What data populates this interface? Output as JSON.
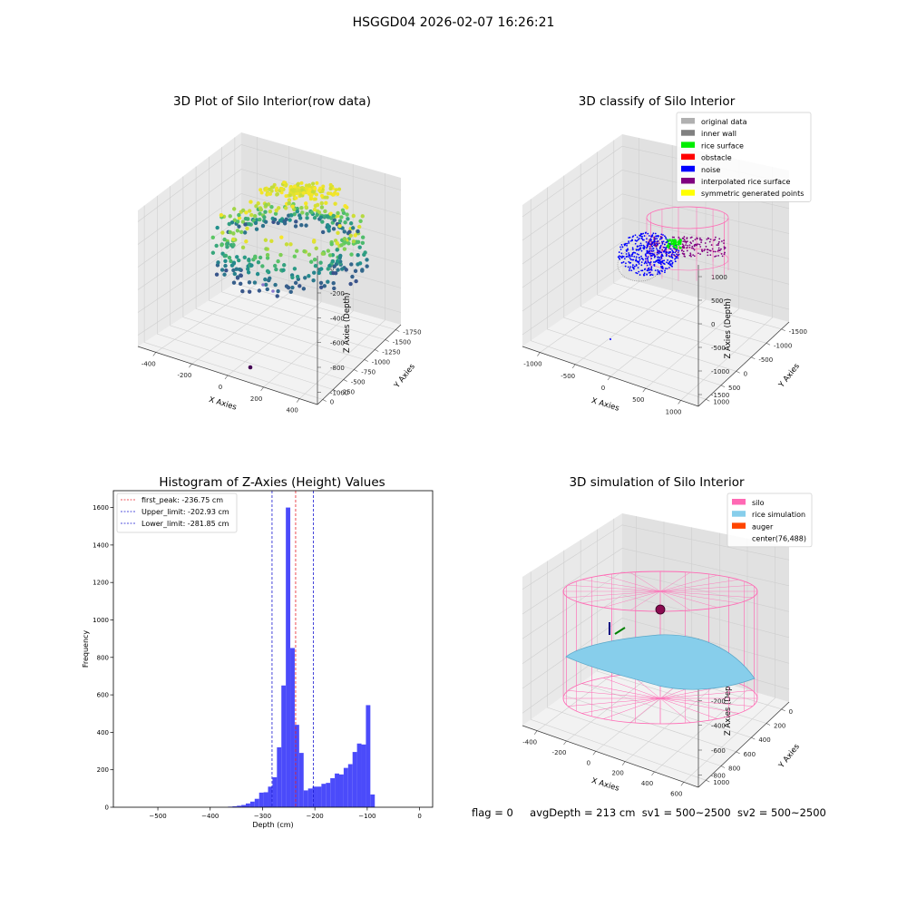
{
  "suptitle": "HSGGD04 2026-02-07 16:26:21",
  "footer": {
    "flag": "flag = 0",
    "avg_depth": "avgDepth = 213 cm",
    "sv1": "sv1 = 500~2500",
    "sv2": "sv2 = 500~2500"
  },
  "colors": {
    "histogram_bar": "#4b4bfa",
    "peak_line": "#e8212b",
    "limit_line": "#1a1ad1",
    "silo_pink": "#ff69b4",
    "rice_sim": "#87ceeb",
    "noise_blue": "#0000ff",
    "rice_surface_green": "#00ee00",
    "interp_purple": "#800080"
  },
  "chart_data": [
    {
      "type": "scatter",
      "subtype": "3d",
      "title": "3D Plot of Silo Interior(row data)",
      "xlabel": "X Axies",
      "ylabel": "Y Axies",
      "zlabel": "Z Axies (Depth)",
      "x_ticks": [
        "-400",
        "-200",
        "0",
        "200",
        "400"
      ],
      "y_ticks": [
        "0",
        "-250",
        "-500",
        "-750",
        "-1000",
        "-1250",
        "-1500",
        "-1750"
      ],
      "z_ticks": [
        "0",
        "-200",
        "-400",
        "-600",
        "-800",
        "-1000"
      ],
      "colormap": "viridis"
    },
    {
      "type": "scatter",
      "subtype": "3d",
      "title": "3D classify of Silo Interior",
      "xlabel": "X Axies",
      "ylabel": "Y Axies",
      "zlabel": "Z Axies (Depth)",
      "x_ticks": [
        "-1000",
        "-500",
        "0",
        "500",
        "1000"
      ],
      "y_ticks": [
        "1000",
        "500",
        "0",
        "-500",
        "-1000",
        "-1500"
      ],
      "z_ticks": [
        "1000",
        "500",
        "0",
        "-500",
        "-1000",
        "-1500"
      ],
      "legend_position": "top-right",
      "legend": [
        {
          "label": "original data",
          "color": "#b0b0b0"
        },
        {
          "label": "inner wall",
          "color": "#808080"
        },
        {
          "label": "rice surface",
          "color": "#00ee00"
        },
        {
          "label": "obstacle",
          "color": "#ff0000"
        },
        {
          "label": "noise",
          "color": "#0000ff"
        },
        {
          "label": "interpolated rice surface",
          "color": "#800080"
        },
        {
          "label": "symmetric generated points",
          "color": "#ffff00"
        }
      ]
    },
    {
      "type": "bar",
      "subtype": "histogram",
      "title": "Histogram of Z-Axies (Height) Values",
      "xlabel": "Depth (cm)",
      "ylabel": "Frequency",
      "xlim": [
        -585,
        25
      ],
      "ylim": [
        0,
        1690
      ],
      "x_ticks": [
        -500,
        -400,
        -300,
        -200,
        -100,
        0
      ],
      "y_ticks": [
        0,
        200,
        400,
        600,
        800,
        1000,
        1200,
        1400,
        1600
      ],
      "bin_width": 8.5,
      "bins_start": [
        -366,
        -357.5,
        -349,
        -340.5,
        -332,
        -323.5,
        -315,
        -306.5,
        -298,
        -289.5,
        -281,
        -272.5,
        -264,
        -255.5,
        -247,
        -238.5,
        -230,
        -221.5,
        -213,
        -204.5,
        -196,
        -187.5,
        -179,
        -170.5,
        -162,
        -153.5,
        -145,
        -136.5,
        -128,
        -119.5,
        -111,
        -102.5,
        -94,
        -85.5,
        -77,
        -68.5,
        -60,
        -51.5,
        -43,
        -34.5,
        -26,
        -17.5,
        -9,
        -0.5
      ],
      "values": [
        3,
        5,
        8,
        12,
        20,
        30,
        45,
        78,
        80,
        110,
        160,
        320,
        650,
        1600,
        850,
        440,
        290,
        90,
        100,
        110,
        110,
        125,
        130,
        155,
        180,
        175,
        210,
        230,
        295,
        340,
        335,
        545,
        68,
        0,
        0,
        0,
        0,
        0,
        0,
        0,
        0,
        0,
        0,
        0
      ],
      "vlines": [
        {
          "label": "first_peak: -236.75 cm",
          "x": -236.75,
          "color": "#e8212b"
        },
        {
          "label": "Upper_limit: -202.93 cm",
          "x": -202.93,
          "color": "#1a1ad1"
        },
        {
          "label": "Lower_limit: -281.85 cm",
          "x": -281.85,
          "color": "#1a1ad1"
        }
      ],
      "legend_position": "top-left"
    },
    {
      "type": "surface",
      "subtype": "3d",
      "title": "3D simulation of Silo Interior",
      "xlabel": "X Axies",
      "ylabel": "Y Axies",
      "zlabel": "Z Axies (Depth)",
      "x_ticks": [
        "-400",
        "-200",
        "0",
        "200",
        "400",
        "600"
      ],
      "y_ticks": [
        "1000",
        "800",
        "600",
        "400",
        "200",
        "0"
      ],
      "z_ticks": [
        "200",
        "0",
        "-200",
        "-400",
        "-600",
        "-800"
      ],
      "legend_position": "top-right",
      "legend": [
        {
          "label": "silo",
          "color": "#ff69b4"
        },
        {
          "label": "rice simulation",
          "color": "#87ceeb"
        },
        {
          "label": "auger",
          "color": "#ff4500"
        },
        {
          "label": "center(76,488)",
          "color": ""
        }
      ]
    }
  ]
}
